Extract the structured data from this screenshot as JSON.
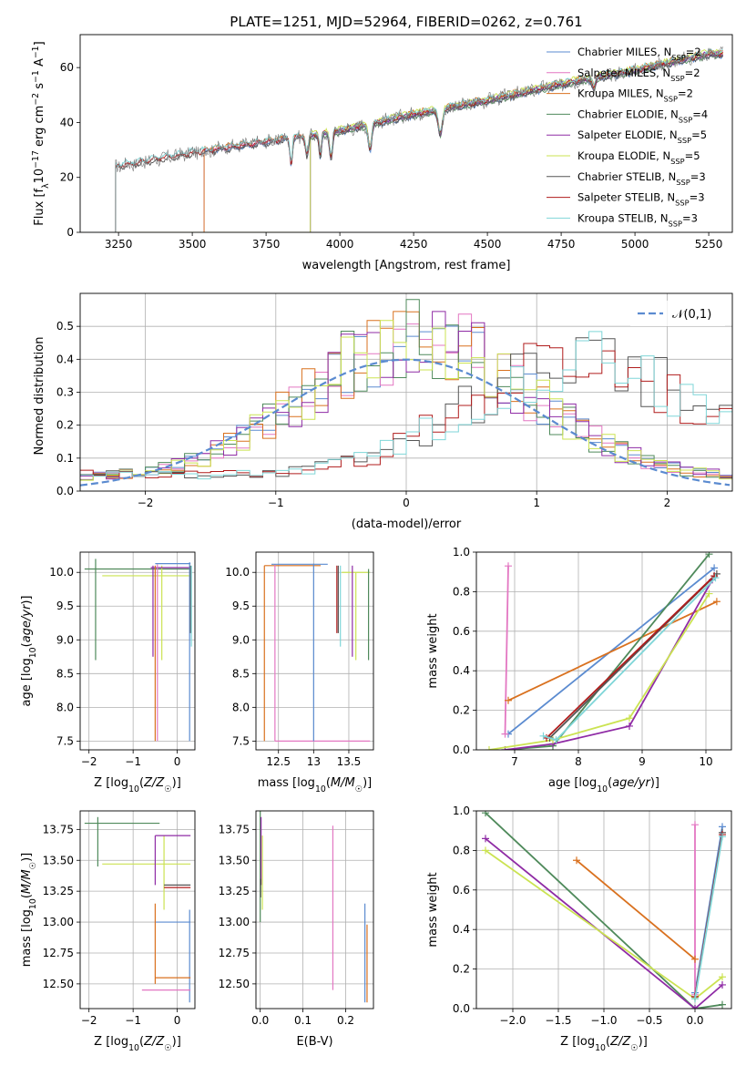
{
  "colors": {
    "chabrier_miles": "#5b8bd0",
    "salpeter_miles": "#e377c2",
    "kroupa_miles": "#d9711f",
    "chabrier_elodie": "#4f8a5b",
    "salpeter_elodie": "#8f2ba5",
    "kroupa_elodie": "#cbe352",
    "chabrier_stelib": "#555555",
    "salpeter_stelib": "#b01c1c",
    "kroupa_stelib": "#7fd6d8",
    "normal": "#5b8bd0",
    "grid": "#b0b0b0"
  },
  "chart_data": [
    {
      "id": "spectrum",
      "type": "line",
      "title": "PLATE=1251, MJD=52964, FIBERID=0262, z=0.761",
      "xlabel": "wavelength [Angstrom, rest frame]",
      "ylabel": "Flux [f_λ 10^-17 erg cm^-2 s^-1 A^-1]",
      "xlim": [
        3120,
        5330
      ],
      "ylim": [
        0,
        72
      ],
      "xticks": [
        3250,
        3500,
        3750,
        4000,
        4250,
        4500,
        4750,
        5000,
        5250
      ],
      "yticks": [
        0,
        20,
        40,
        60
      ],
      "grid": false,
      "legend_position": "right",
      "legend": [
        {
          "series": "chabrier_miles",
          "text": "Chabrier MILES, N",
          "sub": "SSP",
          "suffix": "=2"
        },
        {
          "series": "salpeter_miles",
          "text": "Salpeter MILES, N",
          "sub": "SSP",
          "suffix": "=2"
        },
        {
          "series": "kroupa_miles",
          "text": "Kroupa MILES, N",
          "sub": "SSP",
          "suffix": "=2"
        },
        {
          "series": "chabrier_elodie",
          "text": "Chabrier ELODIE, N",
          "sub": "SSP",
          "suffix": "=4"
        },
        {
          "series": "salpeter_elodie",
          "text": "Salpeter ELODIE, N",
          "sub": "SSP",
          "suffix": "=5"
        },
        {
          "series": "kroupa_elodie",
          "text": "Kroupa ELODIE, N",
          "sub": "SSP",
          "suffix": "=5"
        },
        {
          "series": "chabrier_stelib",
          "text": "Chabrier STELIB, N",
          "sub": "SSP",
          "suffix": "=3"
        },
        {
          "series": "salpeter_stelib",
          "text": "Salpeter STELIB, N",
          "sub": "SSP",
          "suffix": "=3"
        },
        {
          "series": "kroupa_stelib",
          "text": "Kroupa STELIB, N",
          "sub": "SSP",
          "suffix": "=3"
        }
      ],
      "approx_model": {
        "start_wavelength": {
          "miles": 3540,
          "elodie": 3900,
          "stelib": 3240,
          "data": 3240
        },
        "continuum": [
          [
            3240,
            24
          ],
          [
            3500,
            29
          ],
          [
            3750,
            33
          ],
          [
            4000,
            37
          ],
          [
            4250,
            43
          ],
          [
            4500,
            48
          ],
          [
            4750,
            54
          ],
          [
            5000,
            59
          ],
          [
            5250,
            65
          ]
        ],
        "absorption_lines": [
          [
            3835,
            4,
            9
          ],
          [
            3889,
            5,
            7
          ],
          [
            3934,
            4,
            8
          ],
          [
            3970,
            5,
            9
          ],
          [
            4102,
            6,
            9
          ],
          [
            4340,
            7,
            9
          ],
          [
            4861,
            5,
            4
          ]
        ]
      }
    },
    {
      "id": "residuals",
      "type": "step",
      "xlabel": "(data-model)/error",
      "ylabel": "Normed distribution",
      "xlim": [
        -2.5,
        2.5
      ],
      "ylim": [
        0,
        0.6
      ],
      "xticks": [
        -2,
        -1,
        0,
        1,
        2
      ],
      "yticks": [
        0.0,
        0.1,
        0.2,
        0.3,
        0.4,
        0.5
      ],
      "grid": true,
      "legend_position": "top-right",
      "normal_label": "𝒩(0,1)",
      "bin_width": 0.1,
      "centered_series_peak": 0.42,
      "shifted_series_peak": 0.36
    },
    {
      "id": "age_vs_Z",
      "type": "errorbar",
      "xlabel": "Z [log10(Z/Z☉)]",
      "ylabel": "age  [log10(age/yr)]",
      "xlim": [
        -2.2,
        0.4
      ],
      "ylim": [
        7.37,
        10.3
      ],
      "xticks": [
        -2,
        -1,
        0
      ],
      "yticks": [
        7.5,
        8.0,
        8.5,
        9.0,
        9.5,
        10.0
      ],
      "grid": true
    },
    {
      "id": "age_vs_mass",
      "type": "errorbar",
      "xlabel": "mass [log10(M/M☉)]",
      "ylabel": "",
      "xlim": [
        12.18,
        13.85
      ],
      "ylim": [
        7.37,
        10.3
      ],
      "xticks": [
        12.5,
        13.0,
        13.5
      ],
      "yticks": [
        7.5,
        8.0,
        8.5,
        9.0,
        9.5,
        10.0
      ],
      "grid": true
    },
    {
      "id": "weight_vs_age",
      "type": "line",
      "xlabel": "age  [log10(age/yr)]",
      "ylabel": "mass weight",
      "xlim": [
        6.4,
        10.4
      ],
      "ylim": [
        0,
        1
      ],
      "xticks": [
        7,
        8,
        9,
        10
      ],
      "yticks": [
        0.0,
        0.2,
        0.4,
        0.6,
        0.8,
        1.0
      ],
      "grid": true,
      "series": [
        {
          "key": "chabrier_miles",
          "x": [
            6.9,
            10.13
          ],
          "y": [
            0.08,
            0.92
          ]
        },
        {
          "key": "salpeter_miles",
          "x": [
            6.85,
            6.9
          ],
          "y": [
            0.08,
            0.93
          ]
        },
        {
          "key": "kroupa_miles",
          "x": [
            6.9,
            10.17
          ],
          "y": [
            0.25,
            0.75
          ]
        },
        {
          "key": "chabrier_elodie",
          "x": [
            6.85,
            7.6,
            10.05
          ],
          "y": [
            0.0,
            0.02,
            0.99
          ]
        },
        {
          "key": "salpeter_elodie",
          "x": [
            6.85,
            7.6,
            8.8,
            10.1
          ],
          "y": [
            0.0,
            0.03,
            0.12,
            0.86
          ]
        },
        {
          "key": "kroupa_elodie",
          "x": [
            6.6,
            7.6,
            8.8,
            10.05
          ],
          "y": [
            0.0,
            0.05,
            0.16,
            0.79
          ]
        },
        {
          "key": "chabrier_stelib",
          "x": [
            7.55,
            10.17
          ],
          "y": [
            0.06,
            0.89
          ]
        },
        {
          "key": "salpeter_stelib",
          "x": [
            7.5,
            10.13
          ],
          "y": [
            0.06,
            0.88
          ]
        },
        {
          "key": "kroupa_stelib",
          "x": [
            7.45,
            7.65,
            10.15
          ],
          "y": [
            0.07,
            0.05,
            0.87
          ]
        }
      ]
    },
    {
      "id": "mass_vs_Z",
      "type": "errorbar",
      "xlabel": "Z [log10(Z/Z☉)]",
      "ylabel": "mass [log10(M/M☉)]",
      "xlim": [
        -2.2,
        0.4
      ],
      "ylim": [
        12.3,
        13.9
      ],
      "xticks": [
        -2,
        -1,
        0
      ],
      "yticks": [
        12.5,
        12.75,
        13.0,
        13.25,
        13.5,
        13.75
      ],
      "grid": true
    },
    {
      "id": "mass_vs_ebv",
      "type": "errorbar",
      "xlabel": "E(B-V)",
      "ylabel": "",
      "xlim": [
        -0.01,
        0.265
      ],
      "ylim": [
        12.3,
        13.9
      ],
      "xticks": [
        0.0,
        0.1,
        0.2
      ],
      "yticks": [
        12.5,
        12.75,
        13.0,
        13.25,
        13.5,
        13.75
      ],
      "grid": true
    },
    {
      "id": "weight_vs_Z",
      "type": "line",
      "xlabel": "Z [log10(Z/Z☉)]",
      "ylabel": "mass weight",
      "xlim": [
        -2.4,
        0.4
      ],
      "ylim": [
        0,
        1
      ],
      "xticks": [
        -2.0,
        -1.5,
        -1.0,
        -0.5,
        0.0
      ],
      "yticks": [
        0.0,
        0.2,
        0.4,
        0.6,
        0.8,
        1.0
      ],
      "grid": true,
      "series": [
        {
          "key": "chabrier_miles",
          "x": [
            0.0,
            0.3
          ],
          "y": [
            0.08,
            0.92
          ]
        },
        {
          "key": "salpeter_miles",
          "x": [
            0.0,
            0.0
          ],
          "y": [
            0.07,
            0.93
          ]
        },
        {
          "key": "kroupa_miles",
          "x": [
            -1.3,
            0.0
          ],
          "y": [
            0.75,
            0.25
          ]
        },
        {
          "key": "chabrier_elodie",
          "x": [
            -2.3,
            0.0,
            0.3
          ],
          "y": [
            0.99,
            0.0,
            0.02
          ]
        },
        {
          "key": "salpeter_elodie",
          "x": [
            -2.3,
            0.0,
            0.3
          ],
          "y": [
            0.86,
            0.0,
            0.12
          ]
        },
        {
          "key": "kroupa_elodie",
          "x": [
            -2.3,
            0.0,
            0.3
          ],
          "y": [
            0.8,
            0.05,
            0.16
          ]
        },
        {
          "key": "chabrier_stelib",
          "x": [
            0.0,
            0.3
          ],
          "y": [
            0.06,
            0.89
          ]
        },
        {
          "key": "salpeter_stelib",
          "x": [
            0.0,
            0.3
          ],
          "y": [
            0.06,
            0.88
          ]
        },
        {
          "key": "kroupa_stelib",
          "x": [
            0.0,
            0.3
          ],
          "y": [
            0.05,
            0.87
          ]
        }
      ]
    }
  ]
}
